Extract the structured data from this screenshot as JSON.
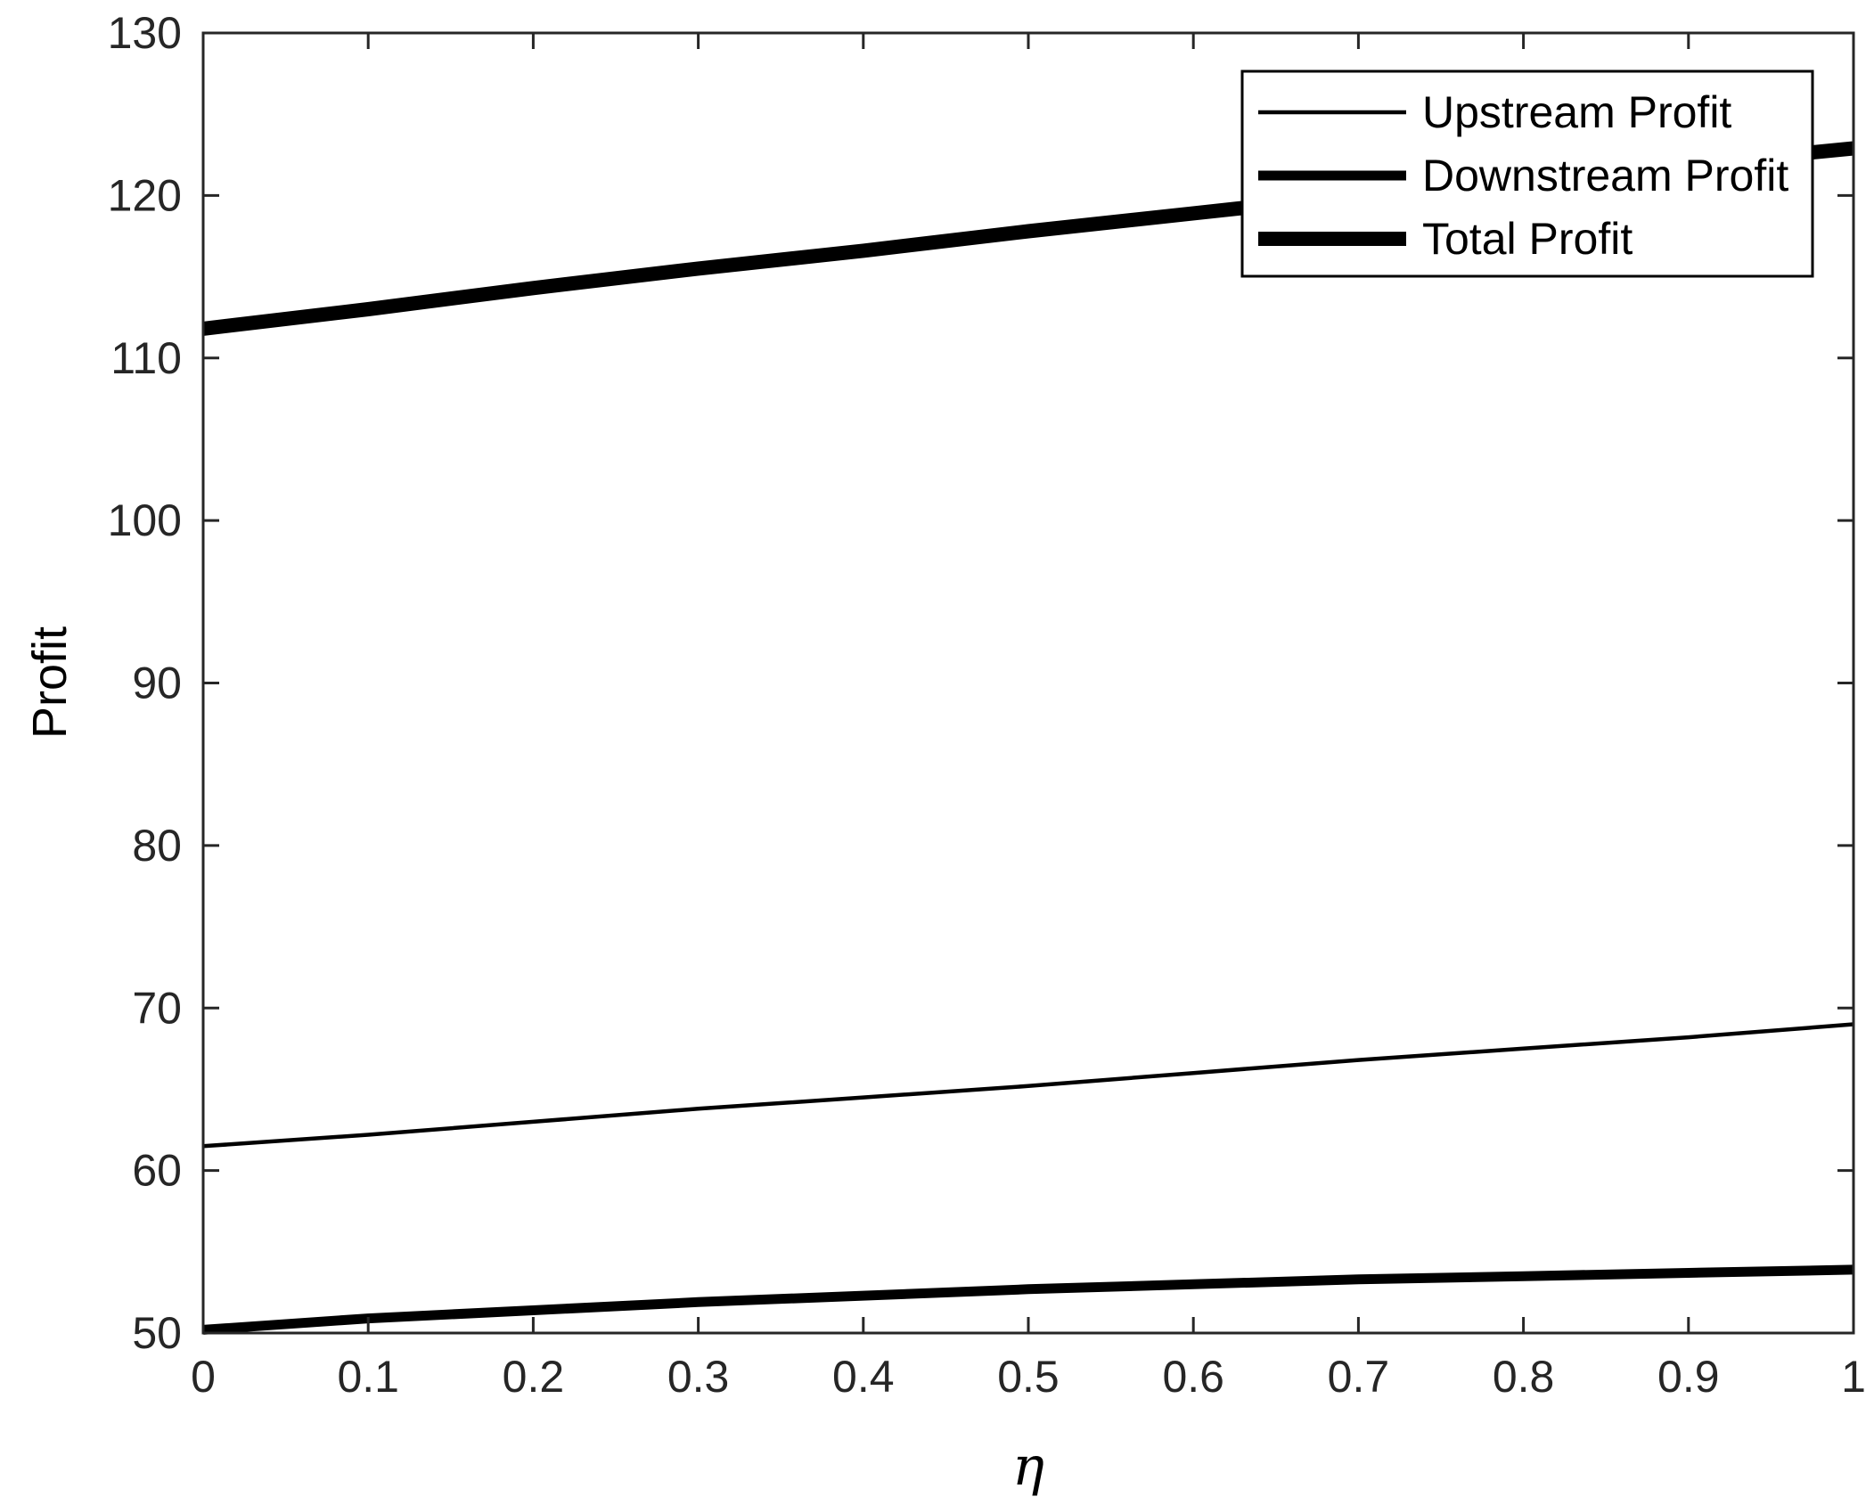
{
  "chart_data": {
    "type": "line",
    "title": "",
    "xlabel": "η",
    "ylabel": "Profit",
    "xlim": [
      0,
      1
    ],
    "ylim": [
      50,
      130
    ],
    "xticks": [
      0,
      0.1,
      0.2,
      0.3,
      0.4,
      0.5,
      0.6,
      0.7,
      0.8,
      0.9,
      1
    ],
    "xtick_labels": [
      "0",
      "0.1",
      "0.2",
      "0.3",
      "0.4",
      "0.5",
      "0.6",
      "0.7",
      "0.8",
      "0.9",
      "1"
    ],
    "yticks": [
      50,
      60,
      70,
      80,
      90,
      100,
      110,
      120,
      130
    ],
    "ytick_labels": [
      "50",
      "60",
      "70",
      "80",
      "90",
      "100",
      "110",
      "120",
      "130"
    ],
    "grid": false,
    "legend_position": "top-right",
    "x": [
      0,
      0.1,
      0.2,
      0.3,
      0.4,
      0.5,
      0.6,
      0.7,
      0.8,
      0.9,
      1
    ],
    "series": [
      {
        "name": "Upstream Profit",
        "color": "#000000",
        "values": [
          61.5,
          62.2,
          63.0,
          63.8,
          64.5,
          65.2,
          66.0,
          66.8,
          67.5,
          68.2,
          69.0
        ]
      },
      {
        "name": "Downstream Profit",
        "color": "#000000",
        "values": [
          50.2,
          50.9,
          51.4,
          51.9,
          52.3,
          52.7,
          53.0,
          53.3,
          53.5,
          53.7,
          53.9
        ]
      },
      {
        "name": "Total Profit",
        "color": "#000000",
        "values": [
          111.8,
          113.0,
          114.3,
          115.5,
          116.6,
          117.8,
          118.9,
          120.0,
          120.9,
          121.9,
          122.9
        ]
      }
    ]
  }
}
